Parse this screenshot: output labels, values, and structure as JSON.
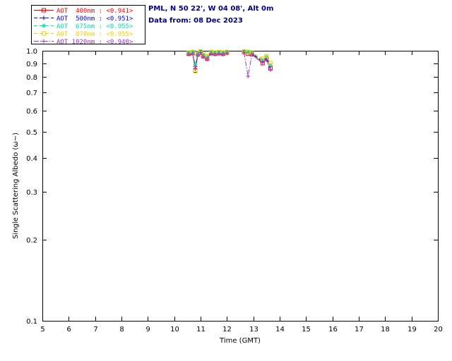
{
  "header": {
    "site_line": "PML, N 50 22', W 04 08', Alt 0m",
    "data_line": "Data from: 08 Dec 2023"
  },
  "colors": {
    "background": "#ffffff",
    "axis": "#000000",
    "header_text": "#000080",
    "legend_border": "#000000"
  },
  "chart_data": {
    "type": "line",
    "title": "",
    "xlabel": "Time (GMT)",
    "ylabel": "Single Scattering Albedo (ω~)",
    "xlim": [
      5,
      20
    ],
    "ylim": [
      0.1,
      1.0
    ],
    "yscale": "log",
    "grid": false,
    "legend_position": "top-left",
    "xticks": [
      5,
      6,
      7,
      8,
      9,
      10,
      11,
      12,
      13,
      14,
      15,
      16,
      17,
      18,
      19,
      20
    ],
    "yticks": [
      1.0,
      0.9,
      0.8,
      0.7,
      0.6,
      0.5,
      0.4,
      0.3,
      0.2,
      0.1
    ],
    "series": [
      {
        "name": "AOT 400nm",
        "label": "AOT  400nm : <0.941>",
        "mean": "<0.941>",
        "color": "#ff0000",
        "marker": "square",
        "linestyle": "solid",
        "segments": [
          {
            "x": [
              10.55,
              10.7,
              10.8,
              10.9,
              11.0,
              11.1,
              11.25,
              11.4,
              11.55,
              11.7,
              11.85,
              12.0
            ],
            "y": [
              0.975,
              0.98,
              0.845,
              0.97,
              0.99,
              0.955,
              0.935,
              0.98,
              0.975,
              0.98,
              0.975,
              0.985
            ]
          },
          {
            "x": [
              12.65,
              12.8,
              12.95,
              13.35,
              13.5,
              13.65
            ],
            "y": [
              0.99,
              0.975,
              0.97,
              0.9,
              0.935,
              0.86
            ]
          }
        ]
      },
      {
        "name": "AOT 500nm",
        "label": "AOT  500nm : <0.951>",
        "mean": "<0.951>",
        "color": "#0000ff",
        "marker": "plus",
        "linestyle": "dashed",
        "segments": [
          {
            "x": [
              10.55,
              10.7,
              10.8,
              10.9,
              11.0,
              11.1,
              11.25,
              11.4,
              11.55,
              11.7,
              11.85,
              12.0
            ],
            "y": [
              0.98,
              0.985,
              0.875,
              0.975,
              0.995,
              0.96,
              0.945,
              0.985,
              0.98,
              0.985,
              0.98,
              0.99
            ]
          },
          {
            "x": [
              12.65,
              12.8,
              12.95,
              13.35,
              13.5,
              13.65
            ],
            "y": [
              0.995,
              0.985,
              0.975,
              0.915,
              0.94,
              0.875
            ]
          }
        ]
      },
      {
        "name": "AOT 675nm",
        "label": "AOT  675nm : <0.955>",
        "mean": "<0.955>",
        "color": "#00e0b0",
        "marker": "asterisk",
        "linestyle": "dashed",
        "segments": [
          {
            "x": [
              10.55,
              10.7,
              10.8,
              10.9,
              11.0,
              11.1,
              11.25,
              11.4,
              11.55,
              11.7,
              11.85,
              12.0
            ],
            "y": [
              0.985,
              0.99,
              0.89,
              0.98,
              0.995,
              0.965,
              0.95,
              0.99,
              0.985,
              0.99,
              0.985,
              0.99
            ]
          },
          {
            "x": [
              12.65,
              12.8,
              12.95,
              13.35,
              13.5,
              13.65
            ],
            "y": [
              0.995,
              0.99,
              0.98,
              0.925,
              0.95,
              0.885
            ]
          }
        ]
      },
      {
        "name": "AOT 870nm",
        "label": "AOT  870nm : <0.955>",
        "mean": "<0.955>",
        "color": "#f0d000",
        "marker": "square",
        "linestyle": "dashed",
        "segments": [
          {
            "x": [
              10.55,
              10.7,
              10.8,
              10.9,
              11.0,
              11.1,
              11.25,
              11.4,
              11.55,
              11.7,
              11.85,
              12.0
            ],
            "y": [
              0.985,
              0.99,
              0.84,
              0.98,
              0.995,
              0.97,
              0.955,
              0.99,
              0.985,
              0.99,
              0.985,
              0.99
            ]
          },
          {
            "x": [
              12.65,
              12.8,
              12.95,
              13.35,
              13.5,
              13.65
            ],
            "y": [
              0.995,
              0.99,
              0.985,
              0.935,
              0.955,
              0.9
            ]
          }
        ]
      },
      {
        "name": "AOT 1020nm",
        "label": "AOT 1020nm : <0.940>",
        "mean": "<0.940>",
        "color": "#9933cc",
        "marker": "plus",
        "linestyle": "dashdot",
        "segments": [
          {
            "x": [
              10.55,
              10.7,
              10.8,
              10.9,
              11.0,
              11.1,
              11.25,
              11.4,
              11.55,
              11.7,
              11.85,
              12.0
            ],
            "y": [
              0.97,
              0.975,
              0.86,
              0.965,
              0.985,
              0.95,
              0.93,
              0.975,
              0.97,
              0.975,
              0.97,
              0.98
            ]
          },
          {
            "x": [
              12.65,
              12.8,
              12.95,
              13.35,
              13.5,
              13.65
            ],
            "y": [
              0.985,
              0.805,
              0.97,
              0.905,
              0.925,
              0.85
            ]
          }
        ]
      }
    ]
  }
}
